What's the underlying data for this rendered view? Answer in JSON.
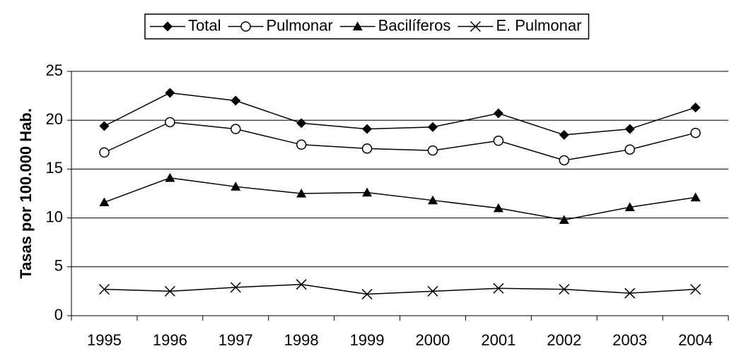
{
  "chart_data": {
    "type": "line",
    "y_label": "Tasas por 100.000 Hab.",
    "categories": [
      "1995",
      "1996",
      "1997",
      "1998",
      "1999",
      "2000",
      "2001",
      "2002",
      "2003",
      "2004"
    ],
    "series": [
      {
        "name": "Total",
        "color": "#000000",
        "marker": "diamond",
        "values": [
          19.4,
          22.8,
          22.0,
          19.7,
          19.1,
          19.3,
          20.7,
          18.5,
          19.1,
          21.3
        ]
      },
      {
        "name": "Pulmonar",
        "color": "#000000",
        "marker": "circle",
        "values": [
          16.7,
          19.8,
          19.1,
          17.5,
          17.1,
          16.9,
          17.9,
          15.9,
          17.0,
          18.7
        ]
      },
      {
        "name": "Bacilíferos",
        "color": "#000000",
        "marker": "triangle",
        "values": [
          11.6,
          14.1,
          13.2,
          12.5,
          12.6,
          11.8,
          11.0,
          9.8,
          11.1,
          12.1
        ]
      },
      {
        "name": "E. Pulmonar",
        "color": "#000000",
        "marker": "x",
        "values": [
          2.7,
          2.5,
          2.9,
          3.2,
          2.2,
          2.5,
          2.8,
          2.7,
          2.3,
          2.7
        ]
      }
    ],
    "ylim": [
      0,
      25
    ],
    "yticks": [
      0,
      5,
      10,
      15,
      20,
      25
    ],
    "grid": true,
    "legend": "top"
  }
}
